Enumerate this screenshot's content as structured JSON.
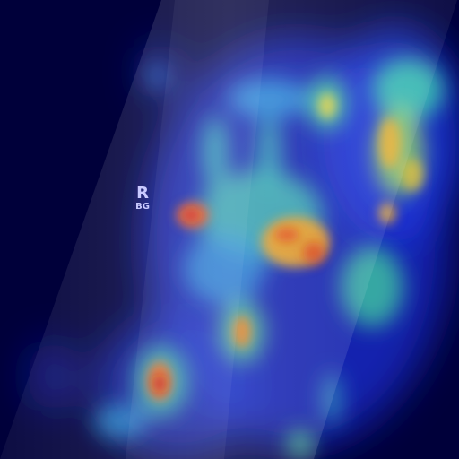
{
  "image": {
    "kind": "radiograph-attention-heatmap",
    "colormap": "jet",
    "background_color": "#00003c",
    "marker": {
      "letter": "R",
      "sub": "BG"
    }
  }
}
